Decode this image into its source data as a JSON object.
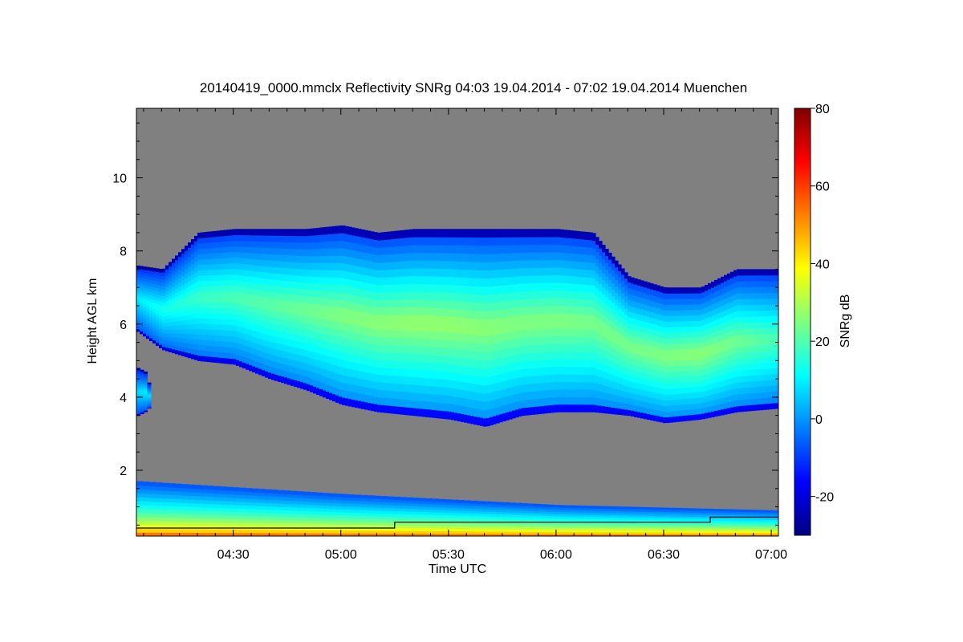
{
  "chart_data": {
    "type": "heatmap",
    "title": "20140419_0000.mmclx Reflectivity SNRg   04:03 19.04.2014 - 07:02 19.04.2014 Muenchen",
    "xlabel": "Time UTC",
    "ylabel": "Height AGL km",
    "colorbar_label": "SNRg dB",
    "x_ticks": [
      "04:30",
      "05:00",
      "05:30",
      "06:00",
      "06:30",
      "07:00"
    ],
    "x_tick_minutes": [
      270,
      300,
      330,
      360,
      390,
      420
    ],
    "xlim_minutes": [
      243,
      422
    ],
    "y_ticks": [
      2,
      4,
      6,
      8,
      10
    ],
    "ylim": [
      0.2,
      11.9
    ],
    "colorbar_ticks": [
      -20,
      0,
      20,
      40,
      60,
      80
    ],
    "colorbar_range": [
      -30,
      80
    ],
    "background_color": "#808080",
    "cloud_layers": [
      {
        "name": "upper-cloud",
        "time_minutes": [
          243,
          250,
          260,
          270,
          280,
          290,
          300,
          310,
          320,
          330,
          340,
          350,
          360,
          370,
          380,
          390,
          400,
          410,
          422
        ],
        "top_km": [
          7.6,
          7.5,
          8.5,
          8.6,
          8.6,
          8.6,
          8.7,
          8.5,
          8.6,
          8.6,
          8.6,
          8.6,
          8.6,
          8.5,
          7.3,
          7.0,
          7.0,
          7.5,
          7.5
        ],
        "base_km": [
          5.8,
          5.3,
          5.0,
          4.9,
          4.5,
          4.2,
          3.8,
          3.6,
          3.5,
          3.4,
          3.2,
          3.5,
          3.6,
          3.6,
          3.5,
          3.3,
          3.4,
          3.6,
          3.7
        ],
        "peak_snr_db": [
          10,
          14,
          18,
          20,
          22,
          24,
          26,
          27,
          28,
          28,
          27,
          26,
          26,
          25,
          25,
          26,
          27,
          24,
          20
        ]
      },
      {
        "name": "small-cloud",
        "time_minutes": [
          243,
          245,
          247
        ],
        "top_km": [
          4.8,
          4.7,
          4.1
        ],
        "base_km": [
          3.5,
          3.6,
          3.8
        ],
        "peak_snr_db": [
          8,
          10,
          6
        ]
      }
    ],
    "boundary_layer": {
      "time_minutes": [
        243,
        300,
        360,
        422
      ],
      "top_km": [
        1.7,
        1.35,
        1.05,
        0.9
      ],
      "surface_snr_db": 65
    },
    "threshold_line": {
      "time_minutes": [
        243,
        315,
        315,
        403,
        403,
        422
      ],
      "height_km": [
        0.42,
        0.42,
        0.58,
        0.58,
        0.72,
        0.72
      ]
    }
  }
}
